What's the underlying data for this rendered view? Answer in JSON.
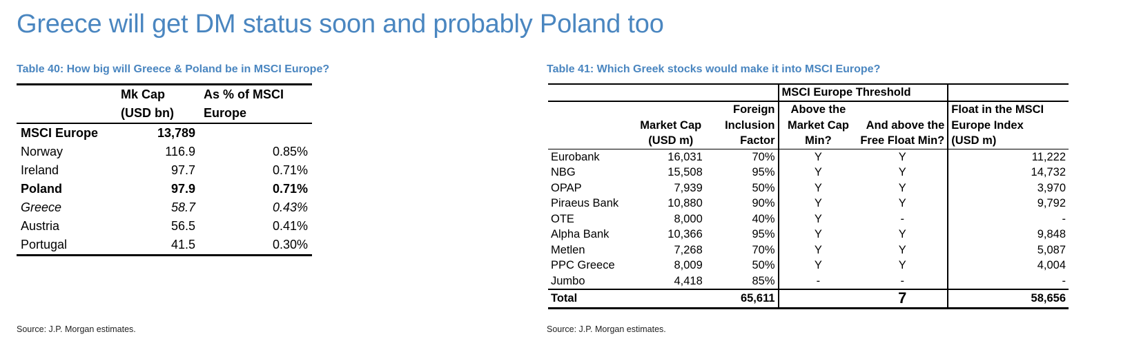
{
  "title": "Greece will get DM status soon and probably Poland too",
  "table40": {
    "caption": "Table 40: How big will Greece & Poland be in MSCI Europe?",
    "headers": {
      "mkcap_l1": "Mk Cap",
      "mkcap_l2": "(USD bn)",
      "pct_l1": "As % of MSCI",
      "pct_l2": "Europe"
    },
    "rows": [
      {
        "name": "MSCI Europe",
        "mkcap": "13,789",
        "pct": ""
      },
      {
        "name": "Norway",
        "mkcap": "116.9",
        "pct": "0.85%"
      },
      {
        "name": "Ireland",
        "mkcap": "97.7",
        "pct": "0.71%"
      },
      {
        "name": "Poland",
        "mkcap": "97.9",
        "pct": "0.71%"
      },
      {
        "name": "Greece",
        "mkcap": "58.7",
        "pct": "0.43%"
      },
      {
        "name": "Austria",
        "mkcap": "56.5",
        "pct": "0.41%"
      },
      {
        "name": "Portugal",
        "mkcap": "41.5",
        "pct": "0.30%"
      }
    ],
    "source": "Source: J.P. Morgan estimates."
  },
  "table41": {
    "caption": "Table 41: Which Greek stocks would make it into MSCI Europe?",
    "threshold_header": "MSCI Europe Threshold",
    "headers": {
      "foreign_l1": "Foreign",
      "above_l1": "Above the",
      "float_l1": "Float in the MSCI",
      "mkcap_l2": "Market Cap",
      "foreign_l2": "Inclusion",
      "above_l2": "Market Cap",
      "free_l2": "And above the",
      "float_l2": "Europe Index",
      "mkcap_l3": "(USD m)",
      "foreign_l3": "Factor",
      "above_l3": "Min?",
      "free_l3": "Free Float Min?",
      "float_l3": "(USD m)"
    },
    "rows": [
      {
        "name": "Eurobank",
        "mkcap": "16,031",
        "fif": "70%",
        "above_mc": "Y",
        "above_ff": "Y",
        "float": "11,222"
      },
      {
        "name": "NBG",
        "mkcap": "15,508",
        "fif": "95%",
        "above_mc": "Y",
        "above_ff": "Y",
        "float": "14,732"
      },
      {
        "name": "OPAP",
        "mkcap": "7,939",
        "fif": "50%",
        "above_mc": "Y",
        "above_ff": "Y",
        "float": "3,970"
      },
      {
        "name": "Piraeus Bank",
        "mkcap": "10,880",
        "fif": "90%",
        "above_mc": "Y",
        "above_ff": "Y",
        "float": "9,792"
      },
      {
        "name": "OTE",
        "mkcap": "8,000",
        "fif": "40%",
        "above_mc": "Y",
        "above_ff": "-",
        "float": "-"
      },
      {
        "name": "Alpha Bank",
        "mkcap": "10,366",
        "fif": "95%",
        "above_mc": "Y",
        "above_ff": "Y",
        "float": "9,848"
      },
      {
        "name": "Metlen",
        "mkcap": "7,268",
        "fif": "70%",
        "above_mc": "Y",
        "above_ff": "Y",
        "float": "5,087"
      },
      {
        "name": "PPC Greece",
        "mkcap": "8,009",
        "fif": "50%",
        "above_mc": "Y",
        "above_ff": "Y",
        "float": "4,004"
      },
      {
        "name": "Jumbo",
        "mkcap": "4,418",
        "fif": "85%",
        "above_mc": "-",
        "above_ff": "-",
        "float": "-"
      }
    ],
    "total": {
      "label": "Total",
      "mkcap": "65,611",
      "count": "7",
      "float": "58,656"
    },
    "source": "Source: J.P. Morgan estimates."
  }
}
